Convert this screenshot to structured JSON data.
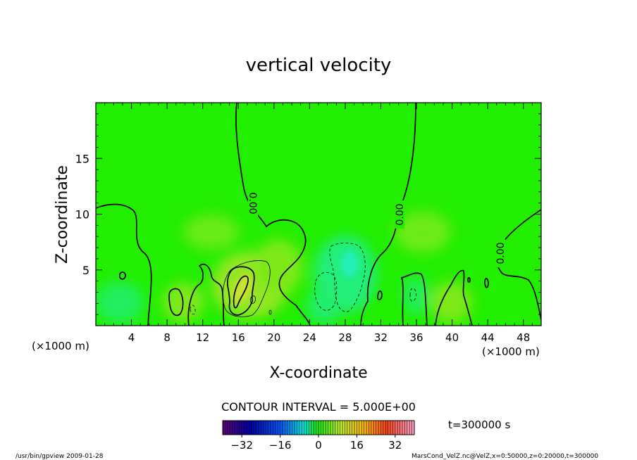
{
  "chart_data": {
    "type": "heatmap",
    "title": "vertical velocity",
    "xlabel": "X-coordinate",
    "ylabel": "Z-coordinate",
    "x_unit_left": "(×1000 m)",
    "x_unit_right": "(×1000 m)",
    "x_ticks": [
      4,
      8,
      12,
      16,
      20,
      24,
      28,
      32,
      36,
      40,
      44,
      48
    ],
    "y_ticks": [
      5,
      10,
      15
    ],
    "xlim": [
      0,
      50
    ],
    "ylim": [
      0,
      20
    ],
    "contour_labels": [
      "0.00",
      "0.00",
      "0.00"
    ],
    "contour_interval_text": "CONTOUR INTERVAL = 5.000E+00",
    "colorbar": {
      "min": -40,
      "max": 40,
      "tick_values": [
        -32,
        -16,
        0,
        16,
        32
      ],
      "tick_labels": [
        "−32",
        "−16",
        "0",
        "16",
        "32"
      ]
    },
    "time_label": "t=300000 s",
    "footer_left": "/usr/bin/gpview   2009-01-28",
    "footer_right": "MarsCond_VelZ.nc@VelZ,x=0:50000,z=0:20000,t=300000",
    "colors": {
      "field_base": "#22ee00",
      "positive_tint": "#a8e62a",
      "negative_tint": "#22eea0",
      "contour": "#000000"
    }
  }
}
